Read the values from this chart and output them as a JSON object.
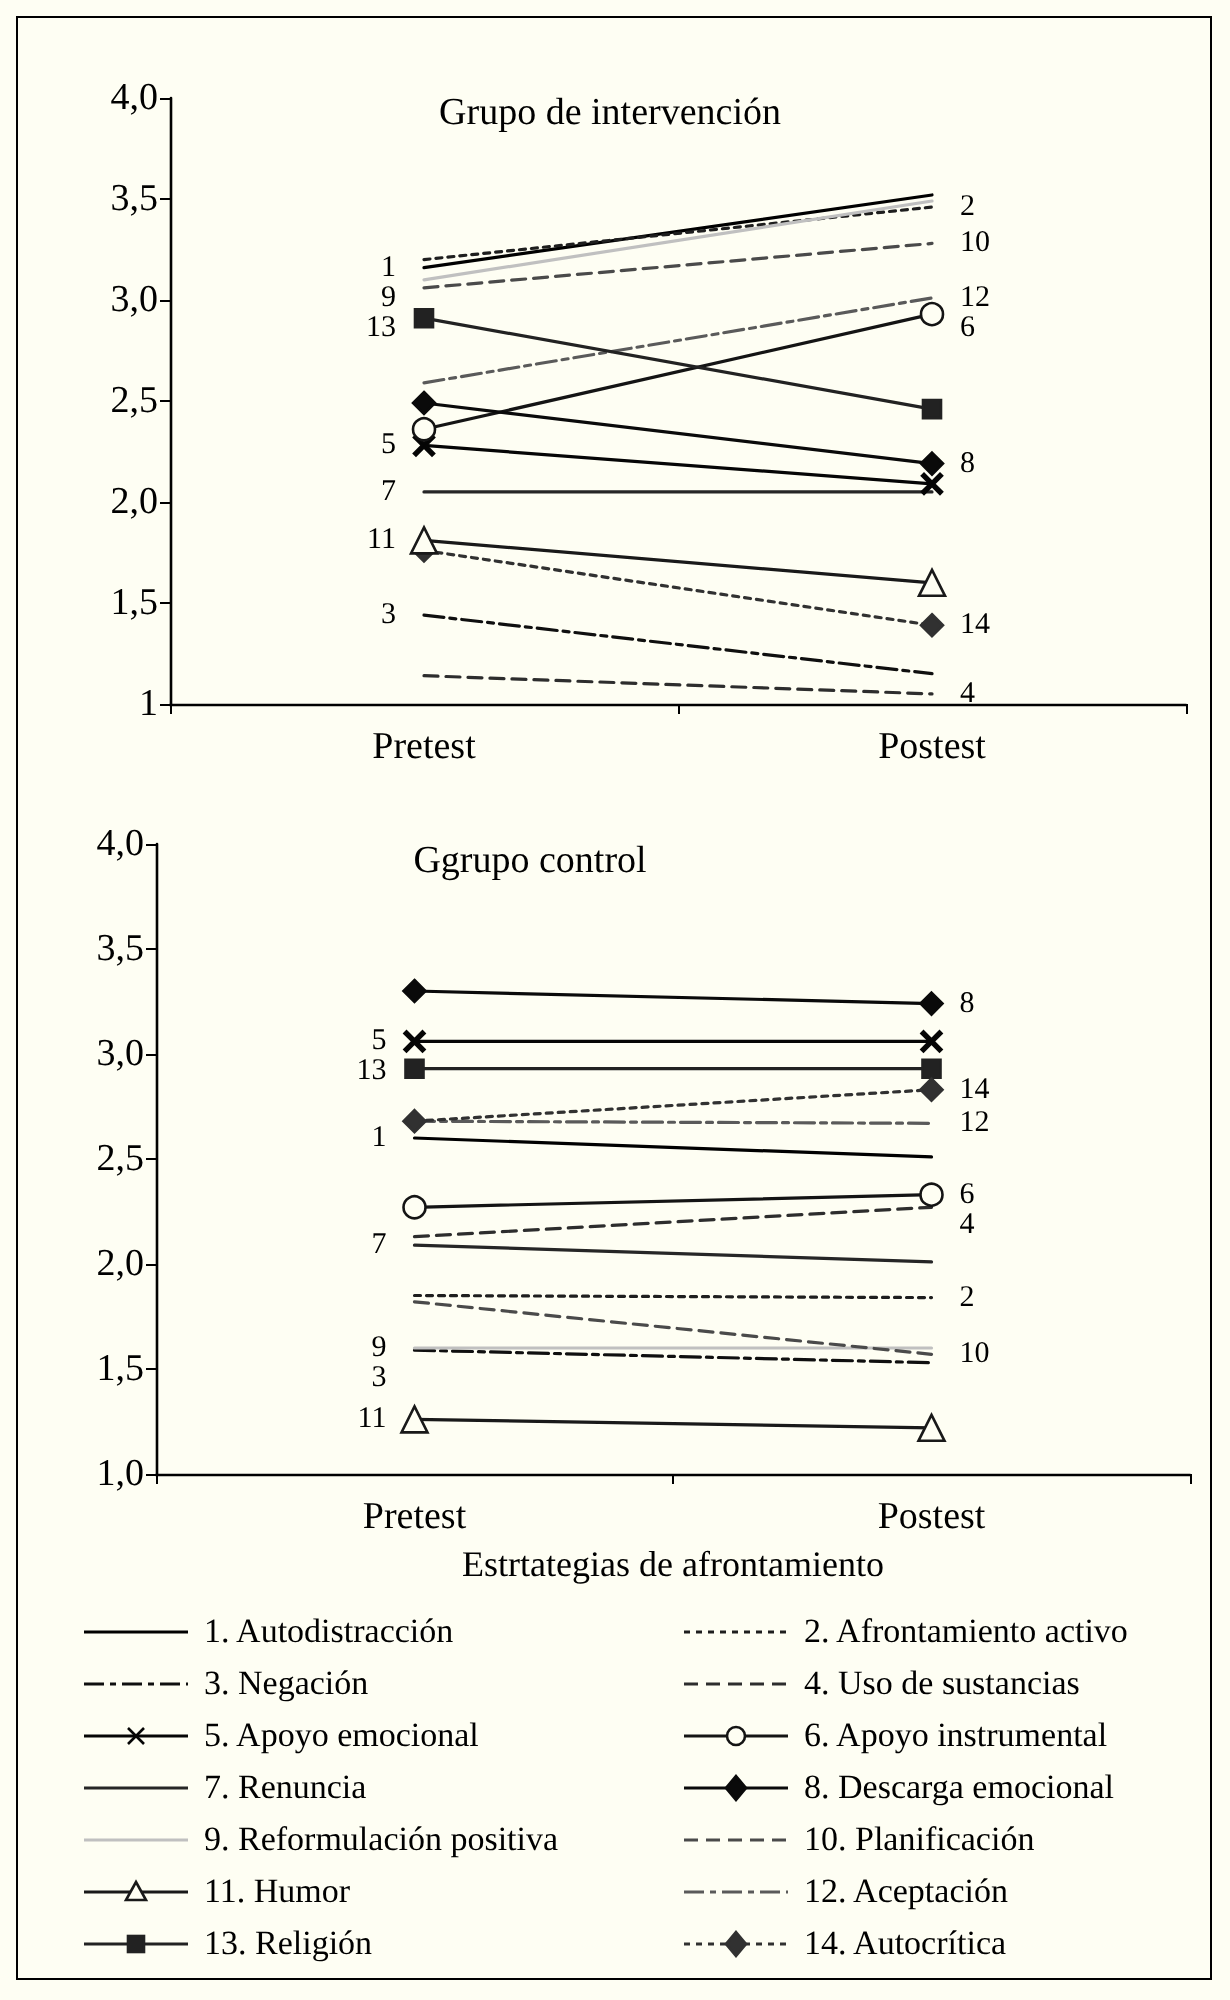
{
  "chart_data": [
    {
      "type": "line",
      "title": "Grupo de intervención",
      "categories": [
        "Pretest",
        "Postest"
      ],
      "ylim": [
        1,
        4
      ],
      "yticks": [
        {
          "value": 1,
          "label": "1"
        },
        {
          "value": 1.5,
          "label": "1,5"
        },
        {
          "value": 2,
          "label": "2,0"
        },
        {
          "value": 2.5,
          "label": "2,5"
        },
        {
          "value": 3,
          "label": "3,0"
        },
        {
          "value": 3.5,
          "label": "3,5"
        },
        {
          "value": 4,
          "label": "4,0"
        }
      ],
      "grid": false,
      "legend": false,
      "series": [
        {
          "color": "#000000",
          "line_style": "solid",
          "marker": "none",
          "values": [
            3.16,
            3.52
          ]
        },
        {
          "color": "#1e1e1e",
          "line_style": "dotted",
          "marker": "none",
          "values": [
            3.2,
            3.46
          ]
        },
        {
          "color": "#0f0f0f",
          "line_style": "dashdot",
          "marker": "none",
          "values": [
            1.44,
            1.15
          ]
        },
        {
          "color": "#2d2d2d",
          "line_style": "dashed",
          "marker": "none",
          "values": [
            1.14,
            1.05
          ]
        },
        {
          "color": "#050505",
          "line_style": "solid",
          "marker": "cross",
          "values": [
            2.28,
            2.09
          ]
        },
        {
          "color": "#141414",
          "line_style": "solid",
          "marker": "circle",
          "values": [
            2.36,
            2.93
          ]
        },
        {
          "color": "#262626",
          "line_style": "solid",
          "marker": "none",
          "values": [
            2.05,
            2.05
          ]
        },
        {
          "color": "#0a0a0a",
          "line_style": "solid",
          "marker": "diamond",
          "values": [
            2.49,
            2.19
          ]
        },
        {
          "color": "#c0c0c0",
          "line_style": "solid",
          "marker": "none",
          "values": [
            3.1,
            3.49
          ]
        },
        {
          "color": "#4a4a4a",
          "line_style": "dashed",
          "marker": "none",
          "values": [
            3.06,
            3.28
          ]
        },
        {
          "color": "#191919",
          "line_style": "solid",
          "marker": "triangle",
          "values": [
            1.81,
            1.6
          ]
        },
        {
          "color": "#5a5a5a",
          "line_style": "dashdot",
          "marker": "none",
          "values": [
            2.59,
            3.01
          ]
        },
        {
          "color": "#222222",
          "line_style": "solid",
          "marker": "square",
          "values": [
            2.91,
            2.46
          ]
        },
        {
          "color": "#313131",
          "line_style": "dotted",
          "marker": "diamond",
          "values": [
            1.76,
            1.39
          ]
        }
      ],
      "annotations": [
        {
          "text": "1",
          "x": "Pretest",
          "y": 3.16
        },
        {
          "text": "9",
          "x": "Pretest",
          "y": 3.1
        },
        {
          "text": "13",
          "x": "Pretest",
          "y": 2.91
        },
        {
          "text": "5",
          "x": "Pretest",
          "y": 2.28
        },
        {
          "text": "7",
          "x": "Pretest",
          "y": 2.05
        },
        {
          "text": "11",
          "x": "Pretest",
          "y": 1.81
        },
        {
          "text": "3",
          "x": "Pretest",
          "y": 1.44
        },
        {
          "text": "2",
          "x": "Postest",
          "y": 3.46
        },
        {
          "text": "10",
          "x": "Postest",
          "y": 3.28
        },
        {
          "text": "12",
          "x": "Postest",
          "y": 3.01
        },
        {
          "text": "6",
          "x": "Postest",
          "y": 2.93
        },
        {
          "text": "8",
          "x": "Postest",
          "y": 2.19
        },
        {
          "text": "14",
          "x": "Postest",
          "y": 1.39
        },
        {
          "text": "4",
          "x": "Postest",
          "y": 1.05
        }
      ]
    },
    {
      "type": "line",
      "title": "Ggrupo control",
      "xlabel": "Estrtategias de afrontamiento",
      "categories": [
        "Pretest",
        "Postest"
      ],
      "ylim": [
        1,
        4
      ],
      "yticks": [
        {
          "value": 1,
          "label": "1,0"
        },
        {
          "value": 1.5,
          "label": "1,5"
        },
        {
          "value": 2,
          "label": "2,0"
        },
        {
          "value": 2.5,
          "label": "2,5"
        },
        {
          "value": 3,
          "label": "3,0"
        },
        {
          "value": 3.5,
          "label": "3,5"
        },
        {
          "value": 4,
          "label": "4,0"
        }
      ],
      "grid": false,
      "legend": "bottom",
      "series": [
        {
          "name": "1. Autodistracción",
          "color": "#000000",
          "line_style": "solid",
          "marker": "none",
          "values": [
            2.6,
            2.51
          ]
        },
        {
          "name": "2. Afrontamiento activo",
          "color": "#1e1e1e",
          "line_style": "dotted",
          "marker": "none",
          "values": [
            1.85,
            1.84
          ]
        },
        {
          "name": "3. Negación",
          "color": "#0f0f0f",
          "line_style": "dashdot",
          "marker": "none",
          "values": [
            1.59,
            1.53
          ]
        },
        {
          "name": "4. Uso de sustancias",
          "color": "#2d2d2d",
          "line_style": "dashed",
          "marker": "none",
          "values": [
            2.13,
            2.27
          ]
        },
        {
          "name": "5. Apoyo emocional",
          "color": "#050505",
          "line_style": "solid",
          "marker": "cross",
          "values": [
            3.06,
            3.06
          ]
        },
        {
          "name": "6. Apoyo instrumental",
          "color": "#141414",
          "line_style": "solid",
          "marker": "circle",
          "values": [
            2.27,
            2.33
          ]
        },
        {
          "name": "7. Renuncia",
          "color": "#262626",
          "line_style": "solid",
          "marker": "none",
          "values": [
            2.09,
            2.01
          ]
        },
        {
          "name": "8. Descarga emocional",
          "color": "#0a0a0a",
          "line_style": "solid",
          "marker": "diamond",
          "values": [
            3.3,
            3.24
          ]
        },
        {
          "name": "9. Reformulación positiva",
          "color": "#c0c0c0",
          "line_style": "solid",
          "marker": "none",
          "values": [
            1.6,
            1.6
          ]
        },
        {
          "name": "10. Planificación",
          "color": "#4a4a4a",
          "line_style": "dashed",
          "marker": "none",
          "values": [
            1.82,
            1.57
          ]
        },
        {
          "name": "11. Humor",
          "color": "#191919",
          "line_style": "solid",
          "marker": "triangle",
          "values": [
            1.26,
            1.22
          ]
        },
        {
          "name": "12. Aceptación",
          "color": "#5a5a5a",
          "line_style": "dashdot",
          "marker": "none",
          "values": [
            2.68,
            2.67
          ]
        },
        {
          "name": "13. Religión",
          "color": "#222222",
          "line_style": "solid",
          "marker": "square",
          "values": [
            2.93,
            2.93
          ]
        },
        {
          "name": "14. Autocrítica",
          "color": "#313131",
          "line_style": "dotted",
          "marker": "diamond",
          "values": [
            2.68,
            2.83
          ]
        }
      ],
      "annotations": [
        {
          "text": "5",
          "x": "Pretest",
          "y": 3.06
        },
        {
          "text": "13",
          "x": "Pretest",
          "y": 2.93
        },
        {
          "text": "1",
          "x": "Pretest",
          "y": 2.6
        },
        {
          "text": "7",
          "x": "Pretest",
          "y": 2.09
        },
        {
          "text": "9",
          "x": "Pretest",
          "y": 1.6
        },
        {
          "text": "3",
          "x": "Pretest",
          "y": 1.59
        },
        {
          "text": "11",
          "x": "Pretest",
          "y": 1.26
        },
        {
          "text": "8",
          "x": "Postest",
          "y": 3.24
        },
        {
          "text": "14",
          "x": "Postest",
          "y": 2.83
        },
        {
          "text": "12",
          "x": "Postest",
          "y": 2.67
        },
        {
          "text": "6",
          "x": "Postest",
          "y": 2.33
        },
        {
          "text": "4",
          "x": "Postest",
          "y": 2.27
        },
        {
          "text": "2",
          "x": "Postest",
          "y": 1.84
        },
        {
          "text": "10",
          "x": "Postest",
          "y": 1.57
        }
      ]
    }
  ]
}
